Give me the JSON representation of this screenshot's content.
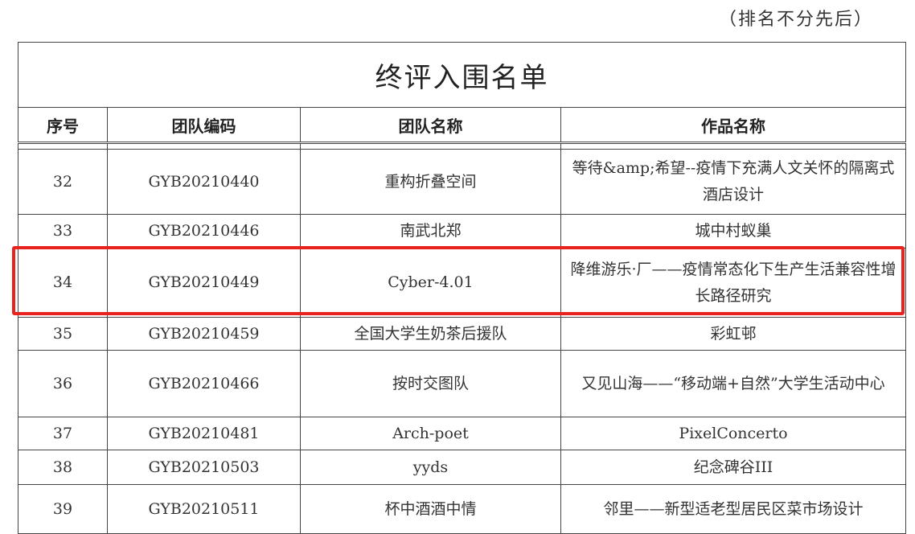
{
  "note": "（排名不分先后）",
  "title": "终评入围名单",
  "headers": {
    "index": "序号",
    "code": "团队编码",
    "team": "团队名称",
    "work": "作品名称"
  },
  "rows": [
    {
      "index": "32",
      "code": "GYB20210440",
      "team": "重构折叠空间",
      "work": "等待&amp;希望--疫情下充满人文关怀的隔离式酒店设计"
    },
    {
      "index": "33",
      "code": "GYB20210446",
      "team": "南武北郑",
      "work": "城中村蚁巢"
    },
    {
      "index": "34",
      "code": "GYB20210449",
      "team": "Cyber-4.01",
      "work": "降维游乐·厂——疫情常态化下生产生活兼容性增长路径研究"
    },
    {
      "index": "35",
      "code": "GYB20210459",
      "team": "全国大学生奶茶后援队",
      "work": "彩虹邨"
    },
    {
      "index": "36",
      "code": "GYB20210466",
      "team": "按时交图队",
      "work": "又见山海——“移动端+自然”大学生活动中心"
    },
    {
      "index": "37",
      "code": "GYB20210481",
      "team": "Arch-poet",
      "work": "PixelConcerto"
    },
    {
      "index": "38",
      "code": "GYB20210503",
      "team": "yyds",
      "work": "纪念碑谷III"
    },
    {
      "index": "39",
      "code": "GYB20210511",
      "team": "杯中酒酒中情",
      "work": "邻里——新型适老型居民区菜市场设计"
    }
  ],
  "highlight_color": "#e8221f"
}
